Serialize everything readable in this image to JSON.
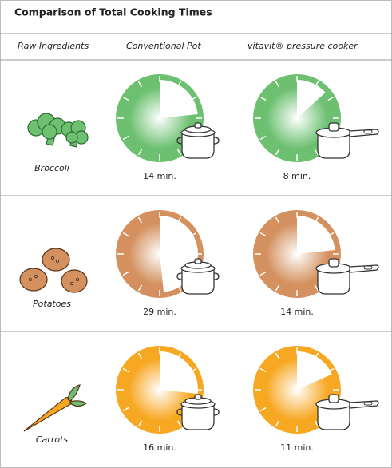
{
  "title": "Comparison of Total Cooking Times",
  "headers": [
    "Raw Ingredients",
    "Conventional Pot",
    "vitavit® pressure cooker"
  ],
  "minutes_per_face": 60,
  "rows": [
    {
      "name": "Broccoli",
      "color": "#6cc070",
      "conventional": {
        "value": 14,
        "label": "14 min."
      },
      "pressure": {
        "value": 8,
        "label": "8 min."
      }
    },
    {
      "name": "Potatoes",
      "color": "#d4915f",
      "conventional": {
        "value": 29,
        "label": "29 min."
      },
      "pressure": {
        "value": 14,
        "label": "14 min."
      }
    },
    {
      "name": "Carrots",
      "color": "#f7a823",
      "conventional": {
        "value": 16,
        "label": "16 min."
      },
      "pressure": {
        "value": 11,
        "label": "11 min."
      }
    }
  ]
}
